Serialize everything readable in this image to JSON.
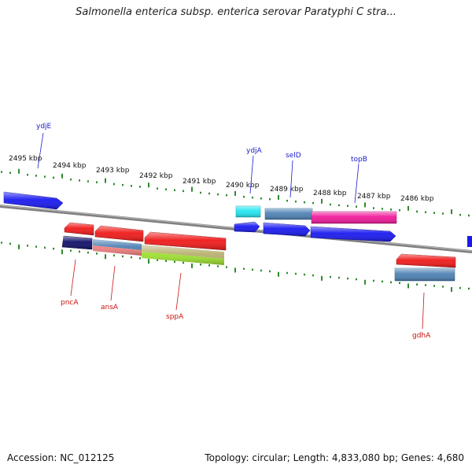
{
  "title": "Salmonella enterica subsp. enterica serovar Paratyphi C stra...",
  "footer": {
    "accession": "Accession: NC_012125",
    "summary": "Topology: circular; Length: 4,833,080 bp; Genes: 4,680"
  },
  "colors": {
    "backbone": "#888888",
    "tick": "#2e8b2e",
    "tick_label": "#111111",
    "upper_gene_label": "#1a1acc",
    "lower_gene_label": "#cc1111",
    "blue": "#1a1af0",
    "red": "#f01a1a",
    "cyan": "#22e6f0",
    "steel": "#4f82b4",
    "magenta": "#f01a9a",
    "navy": "#10106a",
    "salmon": "#f08080",
    "olive": "#b8b070",
    "lime": "#9ee030"
  },
  "scale_labels": [
    "2495 kbp",
    "2494 kbp",
    "2493 kbp",
    "2492 kbp",
    "2491 kbp",
    "2490 kbp",
    "2489 kbp",
    "2488 kbp",
    "2487 kbp",
    "2486 kbp"
  ],
  "gene_labels": {
    "upper": [
      "ydjE",
      "ydjA",
      "selD",
      "topB"
    ],
    "lower": [
      "pncA",
      "ansA",
      "sppA",
      "gdhA"
    ]
  }
}
